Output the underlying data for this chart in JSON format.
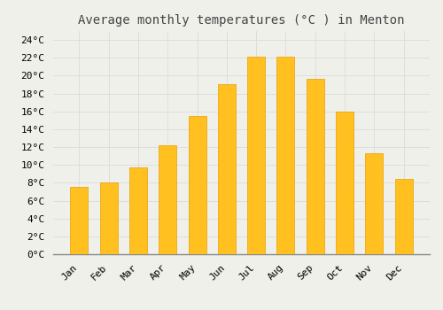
{
  "title": "Average monthly temperatures (°C ) in Menton",
  "months": [
    "Jan",
    "Feb",
    "Mar",
    "Apr",
    "May",
    "Jun",
    "Jul",
    "Aug",
    "Sep",
    "Oct",
    "Nov",
    "Dec"
  ],
  "values": [
    7.5,
    8.0,
    9.7,
    12.2,
    15.5,
    19.0,
    22.1,
    22.1,
    19.6,
    16.0,
    11.3,
    8.4
  ],
  "bar_color": "#FFC020",
  "bar_edge_color": "#E8A000",
  "background_color": "#F0F0EB",
  "grid_color": "#DDDDDD",
  "text_color": "#444444",
  "ylim": [
    0,
    25
  ],
  "yticks": [
    0,
    2,
    4,
    6,
    8,
    10,
    12,
    14,
    16,
    18,
    20,
    22,
    24
  ],
  "title_fontsize": 10,
  "tick_fontsize": 8,
  "font_family": "monospace",
  "bar_width": 0.6
}
